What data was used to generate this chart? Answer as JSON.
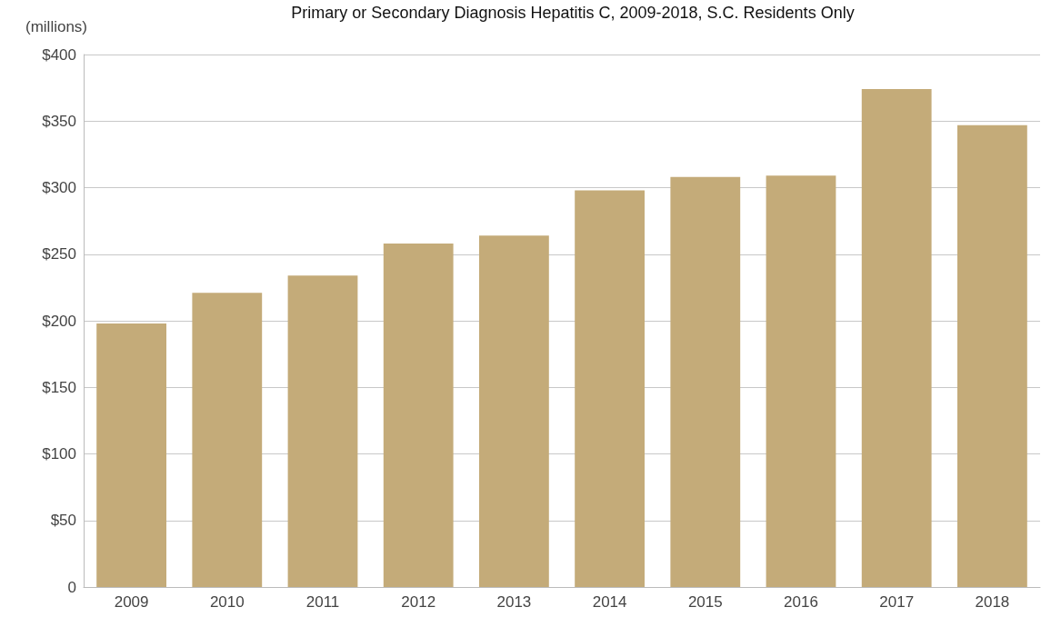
{
  "chart_data": {
    "type": "bar",
    "title": "Primary or Secondary Diagnosis Hepatitis C, 2009-2018, S.C. Residents Only",
    "ylabel": "(millions)",
    "categories": [
      "2009",
      "2010",
      "2011",
      "2012",
      "2013",
      "2014",
      "2015",
      "2016",
      "2017",
      "2018"
    ],
    "values": [
      198,
      221,
      234,
      258,
      264,
      298,
      308,
      309,
      374,
      347
    ],
    "color": "#c4ab79",
    "ylim": [
      0,
      400
    ],
    "yticks": [
      {
        "value": 0,
        "label": "0"
      },
      {
        "value": 50,
        "label": "$50"
      },
      {
        "value": 100,
        "label": "$100"
      },
      {
        "value": 150,
        "label": "$150"
      },
      {
        "value": 200,
        "label": "$200"
      },
      {
        "value": 250,
        "label": "$250"
      },
      {
        "value": 300,
        "label": "$300"
      },
      {
        "value": 350,
        "label": "$350"
      },
      {
        "value": 400,
        "label": "$400"
      }
    ],
    "grid": "y"
  }
}
